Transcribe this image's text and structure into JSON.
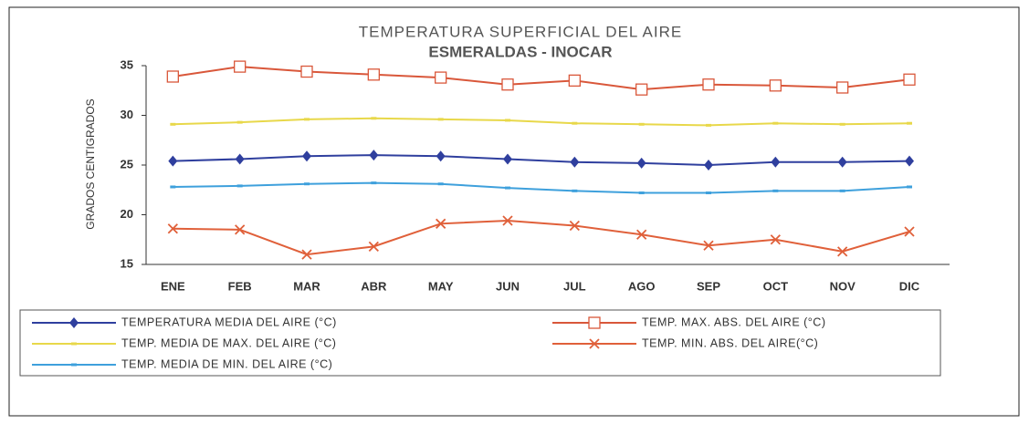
{
  "chart_data": {
    "type": "line",
    "title": "TEMPERATURA SUPERFICIAL DEL AIRE",
    "subtitle": "ESMERALDAS - INOCAR",
    "y_label": "GRADOS CENTIGRADOS",
    "categories": [
      "ENE",
      "FEB",
      "MAR",
      "ABR",
      "MAY",
      "JUN",
      "JUL",
      "AGO",
      "SEP",
      "OCT",
      "NOV",
      "DIC"
    ],
    "ylim": [
      15,
      35
    ],
    "yticks": [
      15,
      20,
      25,
      30,
      35
    ],
    "grid": false,
    "series": [
      {
        "name": "TEMPERATURA MEDIA DEL AIRE (°C)",
        "color": "#2f3f9e",
        "marker": "diamond",
        "values": [
          25.4,
          25.6,
          25.9,
          26.0,
          25.9,
          25.6,
          25.3,
          25.2,
          25.0,
          25.3,
          25.3,
          25.4
        ]
      },
      {
        "name": "TEMP. MAX. ABS. DEL AIRE (°C)",
        "color": "#d9573a",
        "marker": "square",
        "values": [
          33.9,
          34.9,
          34.4,
          34.1,
          33.8,
          33.1,
          33.5,
          32.6,
          33.1,
          33.0,
          32.8,
          33.6
        ]
      },
      {
        "name": "TEMP. MEDIA DE MAX. DEL AIRE (°C)",
        "color": "#e8d84a",
        "marker": "dash",
        "values": [
          29.1,
          29.3,
          29.6,
          29.7,
          29.6,
          29.5,
          29.2,
          29.1,
          29.0,
          29.2,
          29.1,
          29.2
        ]
      },
      {
        "name": "TEMP. MIN. ABS. DEL AIRE(°C)",
        "color": "#e0603a",
        "marker": "x",
        "values": [
          18.6,
          18.5,
          16.0,
          16.8,
          19.1,
          19.4,
          18.9,
          18.0,
          16.9,
          17.5,
          16.3,
          18.3
        ]
      },
      {
        "name": "TEMP. MEDIA DE MIN. DEL AIRE (°C)",
        "color": "#3ea0dc",
        "marker": "dash",
        "values": [
          22.8,
          22.9,
          23.1,
          23.2,
          23.1,
          22.7,
          22.4,
          22.2,
          22.2,
          22.4,
          22.4,
          22.8
        ]
      }
    ]
  }
}
